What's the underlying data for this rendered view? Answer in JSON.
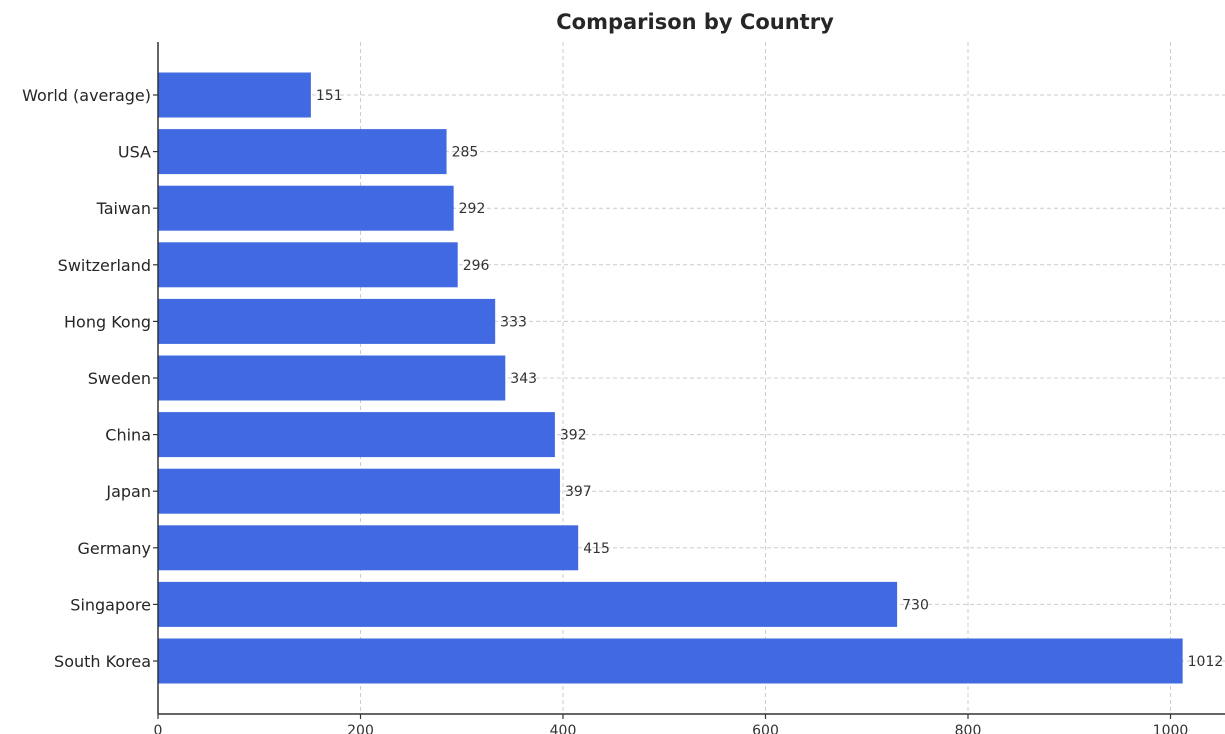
{
  "chart_data": {
    "type": "bar",
    "orientation": "horizontal",
    "title": "Comparison by Country",
    "xlabel": "",
    "ylabel": "",
    "categories": [
      "World (average)",
      "USA",
      "Taiwan",
      "Switzerland",
      "Hong Kong",
      "Sweden",
      "China",
      "Japan",
      "Germany",
      "Singapore",
      "South Korea"
    ],
    "values": [
      151,
      285,
      292,
      296,
      333,
      343,
      392,
      397,
      415,
      730,
      1012
    ],
    "xlim": [
      0,
      1060
    ],
    "x_ticks": [
      0,
      200,
      400,
      600,
      800,
      1000
    ],
    "grid": true,
    "bar_color": "#4169e1",
    "data_labels": true
  }
}
